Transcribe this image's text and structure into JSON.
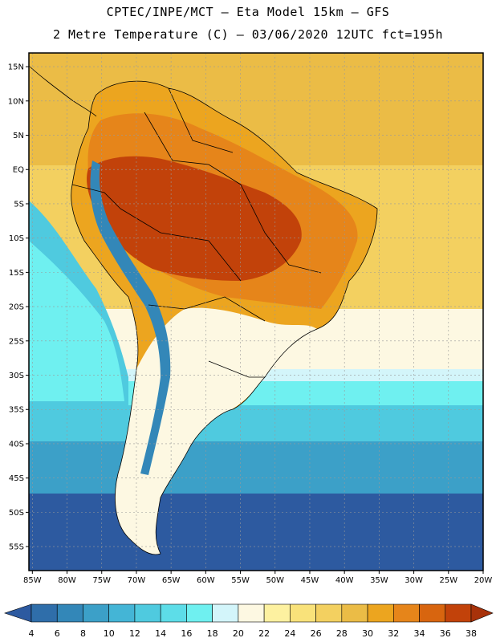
{
  "title_line1": "CPTEC/INPE/MCT –  Eta Model 15km – GFS",
  "title_line2": "2 Metre Temperature (C) – 03/06/2020 12UTC fct=195h",
  "lat_labels": [
    "15N",
    "10N",
    "5N",
    "EQ",
    "5S",
    "10S",
    "15S",
    "20S",
    "25S",
    "30S",
    "35S",
    "40S",
    "45S",
    "50S",
    "55S"
  ],
  "lat_values": [
    15,
    10,
    5,
    0,
    -5,
    -10,
    -15,
    -20,
    -25,
    -30,
    -35,
    -40,
    -45,
    -50,
    -55
  ],
  "lon_labels": [
    "85W",
    "80W",
    "75W",
    "70W",
    "65W",
    "60W",
    "55W",
    "50W",
    "45W",
    "40W",
    "35W",
    "30W",
    "25W",
    "20W"
  ],
  "lon_values": [
    -85,
    -80,
    -75,
    -70,
    -65,
    -60,
    -55,
    -50,
    -45,
    -40,
    -35,
    -30,
    -25,
    -20
  ],
  "map_extent": {
    "lon_min": -85.5,
    "lon_max": -20,
    "lat_min": -58.5,
    "lat_max": 17
  },
  "colorbar": {
    "labels": [
      "4",
      "6",
      "8",
      "10",
      "12",
      "14",
      "16",
      "18",
      "20",
      "22",
      "24",
      "26",
      "28",
      "30",
      "32",
      "34",
      "36",
      "38"
    ],
    "colors": [
      "#2d5aa0",
      "#2f6eaa",
      "#3387b8",
      "#3ca0c8",
      "#44b5d6",
      "#4fcadf",
      "#5ddde8",
      "#6ff0f0",
      "#d3f5fa",
      "#fdf8e2",
      "#fdf1a0",
      "#f9e27a",
      "#f3d060",
      "#ebbc46",
      "#eca51f",
      "#e6851a",
      "#d8650f",
      "#c2420a",
      "#a8320a"
    ]
  },
  "field_colors": {
    "ocean_south": "#2d5aa0",
    "ocean_mid": "#3ca0c8",
    "ocean_cool": "#4fcadf",
    "ocean_cyan": "#6ff0f0",
    "ocean_pale": "#d3f5fa",
    "ocean_cream": "#fdf8e2",
    "ocean_warm": "#f3d060",
    "ocean_tropic": "#ebbc46",
    "land_hot": "#c2420a",
    "land_warm": "#d8650f",
    "land_orange": "#e6851a",
    "land_mild": "#eca51f",
    "land_cool": "#fdf8e2",
    "andes": "#3387b8"
  }
}
